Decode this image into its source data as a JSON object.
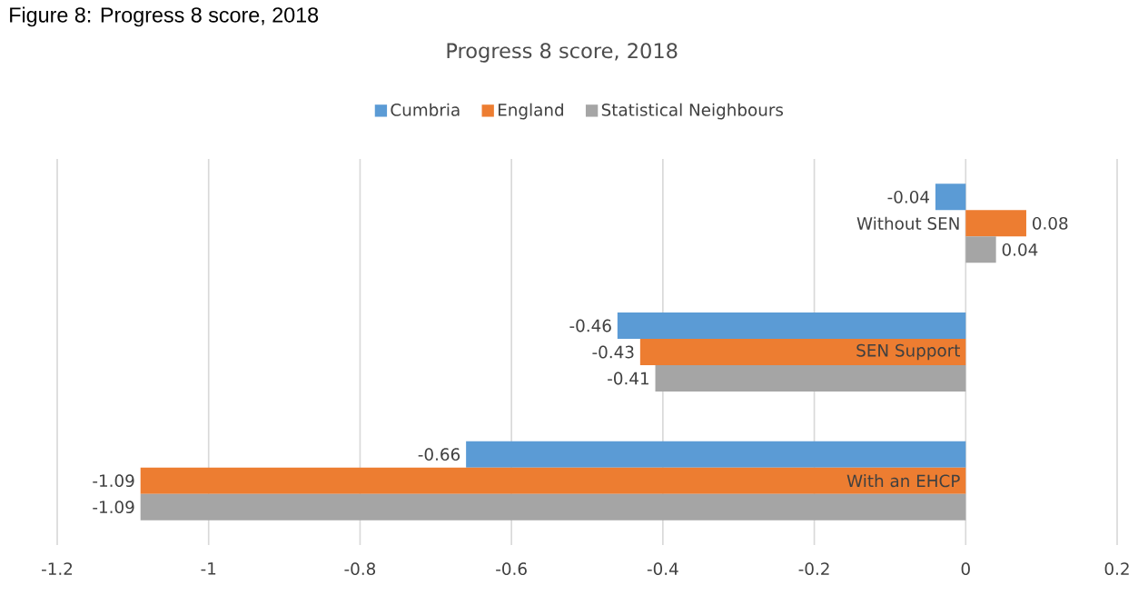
{
  "chart_data": {
    "type": "bar",
    "orientation": "horizontal",
    "title": "Progress 8 score, 2018",
    "annotations": [
      "Figure 8: Progress 8 score, 2018"
    ],
    "categories": [
      "Without SEN",
      "SEN Support",
      "With an EHCP"
    ],
    "series": [
      {
        "name": "Cumbria",
        "color": "#5b9bd5",
        "values": [
          -0.04,
          -0.46,
          -0.66
        ]
      },
      {
        "name": "England",
        "color": "#ed7d31",
        "values": [
          0.08,
          -0.43,
          -1.09
        ]
      },
      {
        "name": "Statistical Neighbours",
        "color": "#a5a5a5",
        "values": [
          0.04,
          -0.41,
          -1.09
        ]
      }
    ],
    "xlim": [
      -1.2,
      0.2
    ],
    "xticks": [
      -1.2,
      -1,
      -0.8,
      -0.6,
      -0.4,
      -0.2,
      0,
      0.2
    ],
    "grid": "x",
    "legend": "top",
    "data_labels": true
  }
}
